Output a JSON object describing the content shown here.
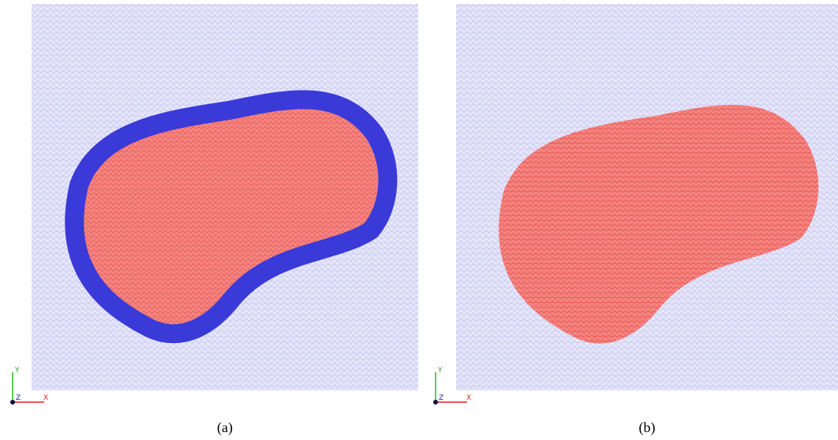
{
  "panels": [
    {
      "label": "(a)",
      "axes": {
        "x": "X",
        "y": "Y",
        "z": "Z"
      }
    },
    {
      "label": "(b)",
      "axes": {
        "x": "X",
        "y": "Y",
        "z": "Z"
      }
    }
  ]
}
